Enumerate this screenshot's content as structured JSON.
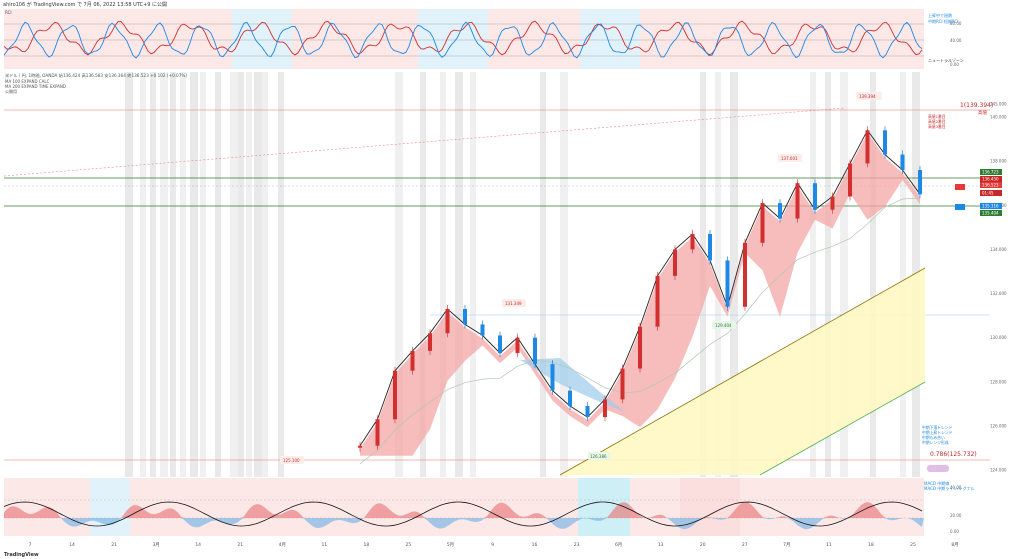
{
  "header": {
    "title_line": "ahiro106 が TradingView.com で 7月 06, 2022 13:58 UTC+9 に公開"
  },
  "top_panel": {
    "name": "RCI",
    "legend": [
      "上昇中で過熱",
      "中期RCI 短期RCI"
    ],
    "zone_label": "ニュートラルゾーン",
    "scale": [
      "80.00",
      "40.00",
      "0.00"
    ]
  },
  "main_panel": {
    "symbol_line": "米ドル / 円, 1時間, OANDA  始136.424 高136.583 安136.364 終136.523 +0.102 (+0.07%)",
    "sub_lines": [
      "MA 100 EXPAND CALC",
      "MA 200 EXPAND TIME EXPAND",
      "公開用"
    ],
    "scale": [
      "145.000",
      "140.000",
      "138.000",
      "136.000",
      "134.000",
      "132.000",
      "130.000",
      "128.000",
      "126.000",
      "124.000"
    ],
    "prices": {
      "fib_1": "1(139.394)",
      "fib_1_note": "高値",
      "fib_0786": "0.786(125.732)",
      "badge_139": "139.394",
      "badge_137": "137.001",
      "badge_131": "131.349",
      "badge_129": "129.404",
      "badge_126": "126.386",
      "badge_125": "125.100"
    },
    "right_tags": [
      {
        "text": "136.723",
        "color": "#2e7d32"
      },
      {
        "text": "136.450",
        "color": "#c62828"
      },
      {
        "text": "136.523",
        "color": "#c62828"
      },
      {
        "text": "136.523",
        "color": "#e53935"
      },
      {
        "text": "01:45",
        "color": "#c62828"
      },
      {
        "text": "135.316",
        "color": "#1e88e5"
      },
      {
        "text": "135.404",
        "color": "#2e7d32"
      }
    ],
    "notes_red": [
      "高値1番目",
      "高値2番目",
      "高値3番目"
    ],
    "notes_blue": [
      "中期下落トレンド",
      "中期上昇トレンド",
      "中期もみ合い",
      "中期レンジ形成"
    ]
  },
  "bottom_panel": {
    "legend": [
      "MACD 中期線",
      "MACD 中期ライン/シグナル"
    ],
    "scale": [
      "40.00",
      "20.00",
      "0.00"
    ]
  },
  "x_axis": {
    "ticks": [
      "7",
      "14",
      "21",
      "3月",
      "14",
      "21",
      "4月",
      "11",
      "18",
      "25",
      "5月",
      "9",
      "16",
      "23",
      "6月",
      "13",
      "20",
      "27",
      "7月",
      "11",
      "18",
      "25",
      "8月"
    ]
  },
  "chart_data": {
    "type": "line",
    "symbol": "USD/JPY",
    "timeframe": "1H",
    "y_range": [
      124,
      141
    ],
    "series": [
      {
        "name": "USD/JPY",
        "values": [
          125.1,
          126.3,
          128.5,
          129.4,
          130.2,
          131.3,
          130.6,
          130.1,
          129.3,
          130.0,
          128.8,
          127.6,
          126.9,
          126.4,
          127.2,
          128.6,
          130.5,
          132.8,
          134.0,
          134.7,
          133.5,
          131.4,
          134.3,
          136.1,
          135.4,
          137.0,
          135.8,
          136.4,
          137.9,
          139.4,
          138.3,
          137.6,
          136.5
        ]
      }
    ],
    "levels": [
      139.394,
      136.723,
      135.404,
      125.732
    ]
  }
}
